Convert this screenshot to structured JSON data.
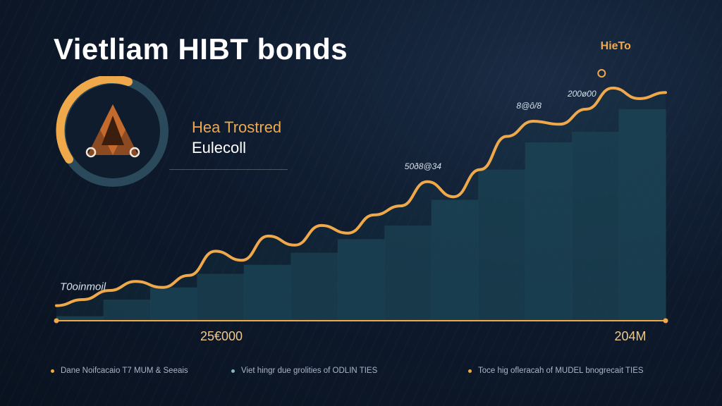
{
  "title": "Vietliam HIBT bonds",
  "badge": {
    "line1": "Hea Trostred",
    "line2": "Eulecoll",
    "ring_color": "#2a4a5c",
    "arc_color": "#f0a94a",
    "icon": "triangle-logo-icon"
  },
  "chart_data": {
    "type": "area",
    "x_start_label": "25€000",
    "x_end_label": "204M",
    "series": [
      {
        "values": [
          10,
          14,
          20,
          26,
          22,
          30,
          46,
          40,
          56,
          50,
          63,
          58,
          70,
          76,
          92,
          82,
          100,
          122,
          132,
          130,
          140,
          154,
          147,
          151
        ],
        "line_color": "#f0a94a"
      }
    ],
    "band_values": [
      3,
      14,
      22,
      31,
      37,
      45,
      54,
      63,
      80,
      100,
      118,
      125,
      140
    ],
    "band_color": "#1e4a5b",
    "annotations": [
      {
        "text": "T0oinmoil",
        "index": 0
      },
      {
        "text": "50ð8@34",
        "index": 14
      },
      {
        "text": "8@ô/8",
        "index": 18
      },
      {
        "text": "200ø00",
        "index": 20
      }
    ],
    "marker": {
      "text": "HieTo",
      "index": 20
    }
  },
  "legend": [
    {
      "text": "Dane Noifcacaio T7 MUM & Seeais",
      "color": "#f0a94a"
    },
    {
      "text": "Viet hingr due grolities of ODLIN TIES",
      "color": "#7fb6c2"
    },
    {
      "text": "Toce hig ofleracah of MUDEL bnogrecait TIES",
      "color": "#f0a94a"
    }
  ]
}
